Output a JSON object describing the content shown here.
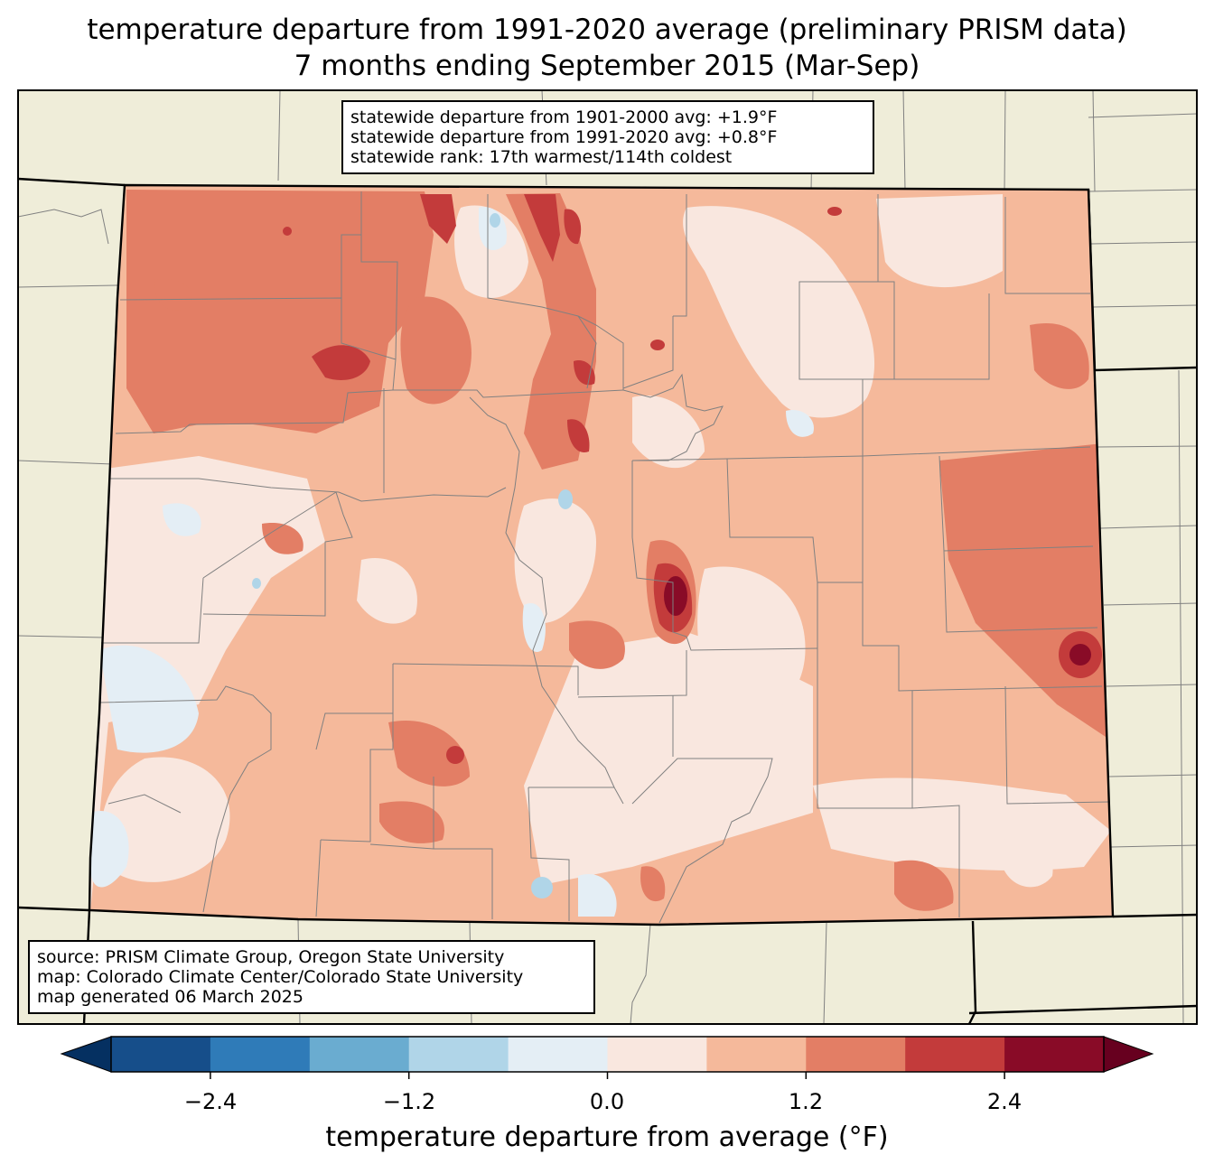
{
  "title": {
    "line1": "temperature departure from 1991-2020 average (preliminary PRISM data)",
    "line2": "7 months ending September 2015 (Mar-Sep)"
  },
  "stats": {
    "line1": "statewide departure from 1901-2000 avg: +1.9°F",
    "line2": "statewide departure from 1991-2020 avg: +0.8°F",
    "line3": "statewide rank: 17th warmest/114th coldest"
  },
  "source": {
    "line1": "source: PRISM Climate Group, Oregon State University",
    "line2": "map: Colorado Climate Center/Colorado State University",
    "line3": "map generated 06 March 2025"
  },
  "colorbar": {
    "label": "temperature departure from average (°F)",
    "ticks": [
      "−2.4",
      "−1.2",
      "0.0",
      "1.2",
      "2.4"
    ],
    "colors": [
      "#053061",
      "#164e8a",
      "#2f7bb8",
      "#6aacd0",
      "#b0d5e8",
      "#e4eef5",
      "#f9e7df",
      "#f5b99b",
      "#e37e65",
      "#c33b3b",
      "#890b27",
      "#67001f"
    ]
  },
  "colors": {
    "land": "#efedd9",
    "border": "#000000",
    "county": "#808080"
  }
}
